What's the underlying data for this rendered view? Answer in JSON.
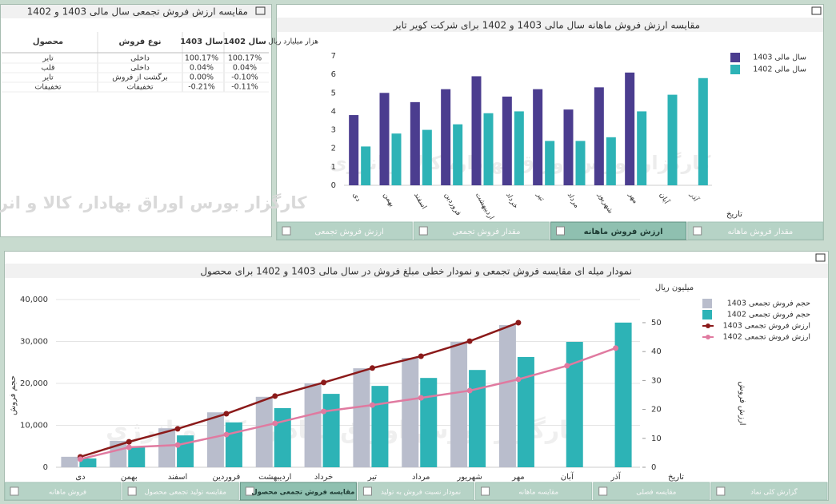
{
  "watermark": "کارگزار بورس اوراق بهادار، کالا و انرژی",
  "table": {
    "title": "مقایسه ارزش فروش تجمعی سال مالی 1403 و 1402",
    "columns": [
      "محصول",
      "نوع فروش",
      "سال 1403",
      "سال 1402"
    ],
    "rows": [
      [
        "تایر",
        "داخلی",
        "100.17%",
        "100.17%"
      ],
      [
        "قلب",
        "داخلی",
        "0.04%",
        "0.04%"
      ],
      [
        "تایر",
        "برگشت از فروش",
        "0.00%",
        "-0.10%"
      ],
      [
        "تخفیفات",
        "تخفیفات",
        "-0.21%",
        "-0.11%"
      ]
    ]
  },
  "chart_data": [
    {
      "type": "bar",
      "title": "مقایسه ارزش فروش ماهانه سال مالی 1403 و 1402 برای شرکت کویر تایر",
      "y_unit": "هزار میلیارد ریال",
      "x_label": "تاریخ",
      "categories": [
        "دی",
        "بهمن",
        "اسفند",
        "فروردین",
        "اردیبهشت",
        "خرداد",
        "تیر",
        "مرداد",
        "شهریور",
        "مهر",
        "آبان",
        "آذر"
      ],
      "series": [
        {
          "name": "سال مالی 1403",
          "color": "#4b3d8f",
          "values": [
            3.8,
            5.0,
            4.5,
            5.2,
            5.9,
            4.8,
            5.2,
            4.1,
            5.3,
            6.1,
            null,
            null
          ]
        },
        {
          "name": "سال مالی 1402",
          "color": "#2db3b6",
          "values": [
            2.1,
            2.8,
            3.0,
            3.3,
            3.9,
            4.0,
            2.4,
            2.4,
            2.6,
            4.0,
            4.9,
            5.8
          ]
        }
      ],
      "ylim": [
        0,
        7
      ],
      "yticks": [
        0,
        1,
        2,
        3,
        4,
        5,
        6,
        7
      ],
      "grid": false,
      "legend": "upper right"
    },
    {
      "type": "combo",
      "title": "نمودار میله ای مقایسه فروش تجمعی و نمودار خطی مبلغ فروش در سال مالی 1403 و 1402 برای محصول",
      "y_label": "حجم فروش",
      "y2_label": "ارزش فروش",
      "y2_unit": "میلیون ریال",
      "x_label": "تاریخ",
      "categories": [
        "دی",
        "بهمن",
        "اسفند",
        "فروردین",
        "اردیبهشت",
        "خرداد",
        "تیر",
        "مرداد",
        "شهریور",
        "مهر",
        "آبان",
        "آذر"
      ],
      "series": [
        {
          "name": "حجم فروش تجمعی  1403",
          "type": "bar",
          "color": "#b9bdcc",
          "values": [
            2500,
            6300,
            9300,
            13100,
            16800,
            20000,
            23600,
            26100,
            29900,
            33900,
            null,
            null
          ]
        },
        {
          "name": "حجم فروش تجمعی 1402",
          "type": "bar",
          "color": "#2db3b6",
          "values": [
            2100,
            4800,
            7600,
            10700,
            14100,
            17500,
            19400,
            21300,
            23200,
            26300,
            29900,
            34500
          ]
        },
        {
          "name": "ارزش فروش تجمعی 1403",
          "type": "line",
          "axis": "y2",
          "color": "#8b1a1a",
          "values": [
            3.6,
            8.8,
            13.3,
            18.5,
            24.6,
            29.3,
            34.3,
            38.4,
            43.6,
            50.0,
            null,
            null
          ]
        },
        {
          "name": "ارزش فروش تجمعی 1402",
          "type": "line",
          "axis": "y2",
          "color": "#e07aa0",
          "values": [
            2.8,
            6.9,
            7.7,
            11.3,
            15.2,
            19.3,
            21.5,
            24.0,
            26.5,
            30.4,
            35.1,
            41.2
          ]
        }
      ],
      "ylim": [
        0,
        40000
      ],
      "yticks": [
        0,
        {
          "value": 10000,
          "label": "10,000"
        },
        {
          "value": 20000,
          "label": "20,000"
        },
        {
          "value": 30000,
          "label": "30,000"
        },
        {
          "value": 40000,
          "label": "40,000"
        }
      ],
      "y2lim": [
        0,
        58
      ],
      "y2ticks": [
        0,
        10,
        20,
        30,
        40,
        50
      ],
      "grid": true,
      "legend": "upper right"
    }
  ],
  "top_tabs": [
    {
      "label": "ارزش فروش تجمعی",
      "active": false
    },
    {
      "label": "مقدار فروش تجمعی",
      "active": false
    },
    {
      "label": "ارزش فروش ماهانه",
      "active": true
    },
    {
      "label": "مقدار فروش ماهانه",
      "active": false
    }
  ],
  "bottom_tabs": [
    {
      "label": "فروش ماهانه",
      "active": false
    },
    {
      "label": "مقایسه تولید تجمعی محصول",
      "active": false
    },
    {
      "label": "مقایسه فروش تجمعی محصول",
      "active": true
    },
    {
      "label": "نمودار نسبت فروش به تولید",
      "active": false
    },
    {
      "label": "مقایسه ماهانه",
      "active": false
    },
    {
      "label": "مقایسه فصلی",
      "active": false
    },
    {
      "label": "گزارش کلی نماد",
      "active": false
    }
  ]
}
